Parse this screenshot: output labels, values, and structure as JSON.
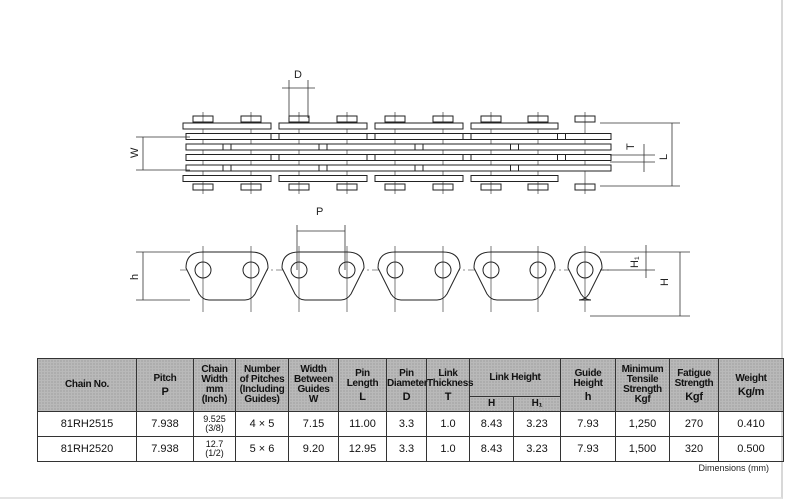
{
  "drawing": {
    "labels": {
      "D": "D",
      "W": "W",
      "T": "T",
      "L": "L",
      "P": "P",
      "h": "h",
      "H1": "H₁",
      "H": "H"
    }
  },
  "table": {
    "headers": {
      "chain_no": "Chain No.",
      "pitch": "Pitch",
      "pitch_sym": "P",
      "chain_width_1": "Chain",
      "chain_width_2": "Width",
      "chain_width_3": "mm",
      "chain_width_4": "(Inch)",
      "pitches_1": "Number",
      "pitches_2": "of Pitches",
      "pitches_3": "(Including",
      "pitches_4": "Guides)",
      "width_1": "Width",
      "width_2": "Between",
      "width_3": "Guides",
      "width_sym": "W",
      "pin_length": "Pin Length",
      "pin_length_sym": "L",
      "pin_dia_1": "Pin",
      "pin_dia_2": "Diameter",
      "pin_dia_sym": "D",
      "link_th_1": "Link",
      "link_th_2": "Thickness",
      "link_th_sym": "T",
      "link_height": "Link Height",
      "link_h_sym": "H",
      "link_h1_sym": "H₁",
      "guide_height": "Guide Height",
      "guide_sym": "h",
      "tensile_1": "Minimum",
      "tensile_2": "Tensile",
      "tensile_3": "Strength",
      "tensile_sym": "Kgf",
      "fatigue": "Fatigue Strength",
      "fatigue_sym": "Kgf",
      "weight": "Weight",
      "weight_sym": "Kg/m"
    },
    "rows": [
      {
        "chain_no": "81RH2515",
        "pitch": "7.938",
        "width_mm": "9.525",
        "width_in": "(3/8)",
        "pitches": "4 × 5",
        "w": "7.15",
        "l": "11.00",
        "d": "3.3",
        "t": "1.0",
        "h": "8.43",
        "h1": "3.23",
        "guide": "7.93",
        "tensile": "1,250",
        "fatigue": "270",
        "weight": "0.410"
      },
      {
        "chain_no": "81RH2520",
        "pitch": "7.938",
        "width_mm": "12.7",
        "width_in": "(1/2)",
        "pitches": "5 × 6",
        "w": "9.20",
        "l": "12.95",
        "d": "3.3",
        "t": "1.0",
        "h": "8.43",
        "h1": "3.23",
        "guide": "7.93",
        "tensile": "1,500",
        "fatigue": "320",
        "weight": "0.500"
      }
    ],
    "note": "Dimensions (mm)"
  }
}
